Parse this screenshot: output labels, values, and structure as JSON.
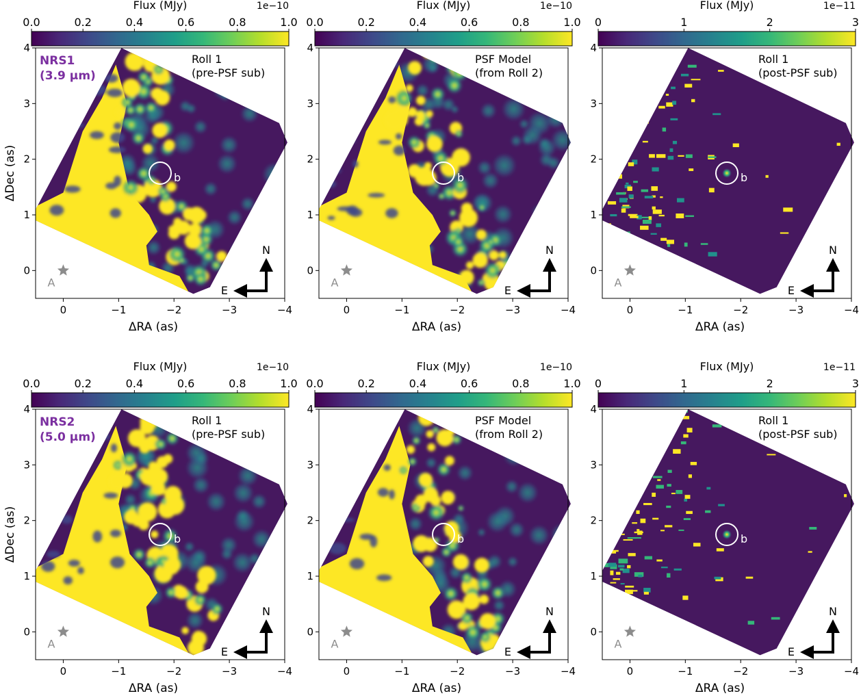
{
  "figure": {
    "colorbar_label": "Flux (MJy)",
    "xlabel": "ΔRA (as)",
    "ylabel": "ΔDec (as)",
    "star_label": "A",
    "companion_label": "b",
    "compass": {
      "north": "N",
      "east": "E"
    }
  },
  "chart_data": [
    {
      "type": "heatmap",
      "row": 1,
      "col": 1,
      "detector_label": [
        "NRS1",
        "(3.9 μm)"
      ],
      "panel_label": [
        "Roll 1",
        "(pre-PSF sub)"
      ],
      "colorbar": {
        "ticks": [
          "0.0",
          "0.2",
          "0.4",
          "0.6",
          "0.8",
          "1.0"
        ],
        "range": [
          0,
          1.0
        ],
        "exponent": "1e−10"
      },
      "xlim": [
        0.5,
        -4
      ],
      "ylim": [
        -0.5,
        4
      ],
      "xticks": [
        "0",
        "−1",
        "−2",
        "−3",
        "−4"
      ],
      "yticks": [
        "0",
        "1",
        "2",
        "3",
        "4"
      ],
      "companion_position": {
        "dRA": -1.75,
        "dDec": 1.75
      },
      "star_position": {
        "dRA": 0,
        "dDec": 0
      }
    },
    {
      "type": "heatmap",
      "row": 1,
      "col": 2,
      "panel_label": [
        "PSF Model",
        "(from Roll 2)"
      ],
      "colorbar": {
        "ticks": [
          "0.0",
          "0.2",
          "0.4",
          "0.6",
          "0.8",
          "1.0"
        ],
        "range": [
          0,
          1.0
        ],
        "exponent": "1e−10"
      },
      "xlim": [
        0.5,
        -4
      ],
      "ylim": [
        -0.5,
        4
      ],
      "xticks": [
        "0",
        "−1",
        "−2",
        "−3",
        "−4"
      ],
      "yticks": [
        "0",
        "1",
        "2",
        "3",
        "4"
      ],
      "companion_position": {
        "dRA": -1.75,
        "dDec": 1.75
      },
      "star_position": {
        "dRA": 0,
        "dDec": 0
      }
    },
    {
      "type": "heatmap",
      "row": 1,
      "col": 3,
      "panel_label": [
        "Roll 1",
        "(post-PSF sub)"
      ],
      "colorbar": {
        "ticks": [
          "0",
          "1",
          "2",
          "3"
        ],
        "range": [
          0,
          3
        ],
        "exponent": "1e−11"
      },
      "xlim": [
        0.5,
        -4
      ],
      "ylim": [
        -0.5,
        4
      ],
      "xticks": [
        "0",
        "−1",
        "−2",
        "−3",
        "−4"
      ],
      "yticks": [
        "0",
        "1",
        "2",
        "3",
        "4"
      ],
      "companion_position": {
        "dRA": -1.75,
        "dDec": 1.75
      },
      "star_position": {
        "dRA": 0,
        "dDec": 0
      }
    },
    {
      "type": "heatmap",
      "row": 2,
      "col": 1,
      "detector_label": [
        "NRS2",
        "(5.0 μm)"
      ],
      "panel_label": [
        "Roll 1",
        "(pre-PSF sub)"
      ],
      "colorbar": {
        "ticks": [
          "0.0",
          "0.2",
          "0.4",
          "0.6",
          "0.8",
          "1.0"
        ],
        "range": [
          0,
          1.0
        ],
        "exponent": "1e−10"
      },
      "xlim": [
        0.5,
        -4
      ],
      "ylim": [
        -0.5,
        4
      ],
      "xticks": [
        "0",
        "−1",
        "−2",
        "−3",
        "−4"
      ],
      "yticks": [
        "0",
        "1",
        "2",
        "3",
        "4"
      ],
      "companion_position": {
        "dRA": -1.75,
        "dDec": 1.75
      },
      "star_position": {
        "dRA": 0,
        "dDec": 0
      }
    },
    {
      "type": "heatmap",
      "row": 2,
      "col": 2,
      "panel_label": [
        "PSF Model",
        "(from Roll 2)"
      ],
      "colorbar": {
        "ticks": [
          "0.0",
          "0.2",
          "0.4",
          "0.6",
          "0.8",
          "1.0"
        ],
        "range": [
          0,
          1.0
        ],
        "exponent": "1e−10"
      },
      "xlim": [
        0.5,
        -4
      ],
      "ylim": [
        -0.5,
        4
      ],
      "xticks": [
        "0",
        "−1",
        "−2",
        "−3",
        "−4"
      ],
      "yticks": [
        "0",
        "1",
        "2",
        "3",
        "4"
      ],
      "companion_position": {
        "dRA": -1.75,
        "dDec": 1.75
      },
      "star_position": {
        "dRA": 0,
        "dDec": 0
      }
    },
    {
      "type": "heatmap",
      "row": 2,
      "col": 3,
      "panel_label": [
        "Roll 1",
        "(post-PSF sub)"
      ],
      "colorbar": {
        "ticks": [
          "0",
          "1",
          "2",
          "3"
        ],
        "range": [
          0,
          3
        ],
        "exponent": "1e−11"
      },
      "xlim": [
        0.5,
        -4
      ],
      "ylim": [
        -0.5,
        4
      ],
      "xticks": [
        "0",
        "−1",
        "−2",
        "−3",
        "−4"
      ],
      "yticks": [
        "0",
        "1",
        "2",
        "3",
        "4"
      ],
      "companion_position": {
        "dRA": -1.75,
        "dDec": 1.75
      },
      "star_position": {
        "dRA": 0,
        "dDec": 0
      }
    }
  ],
  "colors": {
    "viridis": [
      "#440154",
      "#482878",
      "#3e4989",
      "#31688e",
      "#26828e",
      "#1f9e89",
      "#35b779",
      "#6ece58",
      "#b5de2b",
      "#fde725"
    ],
    "detector_label": "#7b2fa0",
    "star": "#8c8c8c",
    "annotation_text": "#000000",
    "circle": "#ffffff"
  }
}
